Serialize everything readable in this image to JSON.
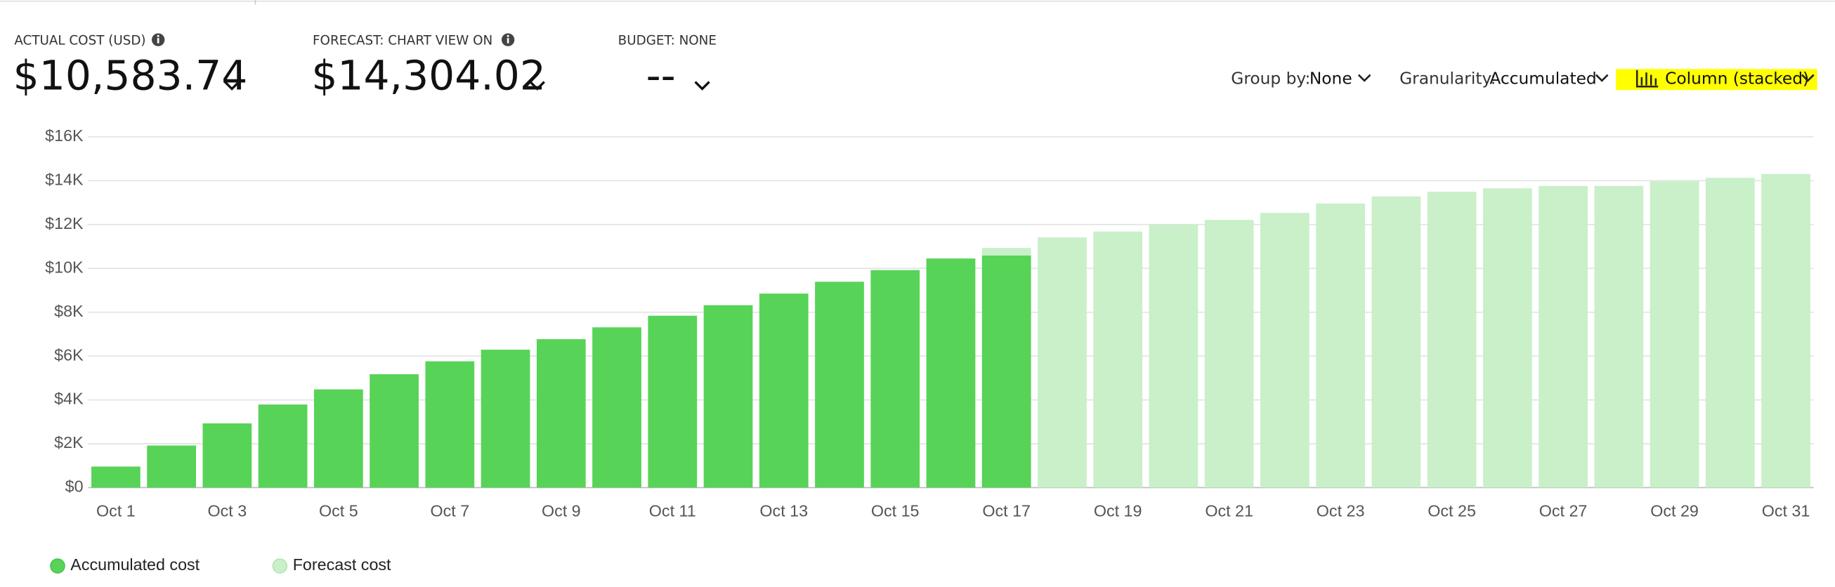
{
  "header": {
    "actual_label": "ACTUAL COST (USD)",
    "actual_value": "$10,583.74",
    "forecast_label": "FORECAST: CHART VIEW ON",
    "forecast_value": "$14,304.02",
    "budget_label": "BUDGET: NONE",
    "budget_value": "--",
    "group_by_label": "Group by:",
    "group_by_value": "None",
    "granularity_label": "Granularity:",
    "granularity_value": "Accumulated",
    "view": "Column (stacked)"
  },
  "chart_data": {
    "type": "bar",
    "categories": [
      "Oct 1",
      null,
      "Oct 3",
      null,
      "Oct 5",
      null,
      "Oct 7",
      null,
      "Oct 9",
      null,
      "Oct 11",
      null,
      "Oct 13",
      null,
      "Oct 15",
      null,
      "Oct 17",
      null,
      "Oct 19",
      null,
      "Oct 21",
      null,
      "Oct 23",
      null,
      "Oct 25",
      null,
      "Oct 27",
      null,
      "Oct 29",
      null,
      "Oct 31"
    ],
    "series": [
      {
        "name": "Accumulated cost",
        "color": "#57d357",
        "values": [
          960,
          1920,
          2930,
          3790,
          4480,
          5170,
          5760,
          6290,
          6770,
          7310,
          7840,
          8320,
          8850,
          9390,
          9920,
          10450,
          10583.74,
          null,
          null,
          null,
          null,
          null,
          null,
          null,
          null,
          null,
          null,
          null,
          null,
          null,
          null
        ]
      },
      {
        "name": "Forecast cost",
        "color": "#c9f0c9",
        "values": [
          null,
          null,
          null,
          null,
          null,
          null,
          null,
          null,
          null,
          null,
          null,
          null,
          null,
          null,
          null,
          null,
          10930,
          11410,
          11680,
          12000,
          12210,
          12530,
          12960,
          13280,
          13490,
          13650,
          13760,
          13760,
          13970,
          14130,
          14304.02
        ]
      }
    ],
    "ylim": [
      0,
      16000
    ],
    "yticks": [
      {
        "value": 0,
        "label": "$0"
      },
      {
        "value": 2000,
        "label": "$2K"
      },
      {
        "value": 4000,
        "label": "$4K"
      },
      {
        "value": 6000,
        "label": "$6K"
      },
      {
        "value": 8000,
        "label": "$8K"
      },
      {
        "value": 10000,
        "label": "$10K"
      },
      {
        "value": 12000,
        "label": "$12K"
      },
      {
        "value": 14000,
        "label": "$14K"
      },
      {
        "value": 16000,
        "label": "$16K"
      }
    ],
    "grid": true
  }
}
